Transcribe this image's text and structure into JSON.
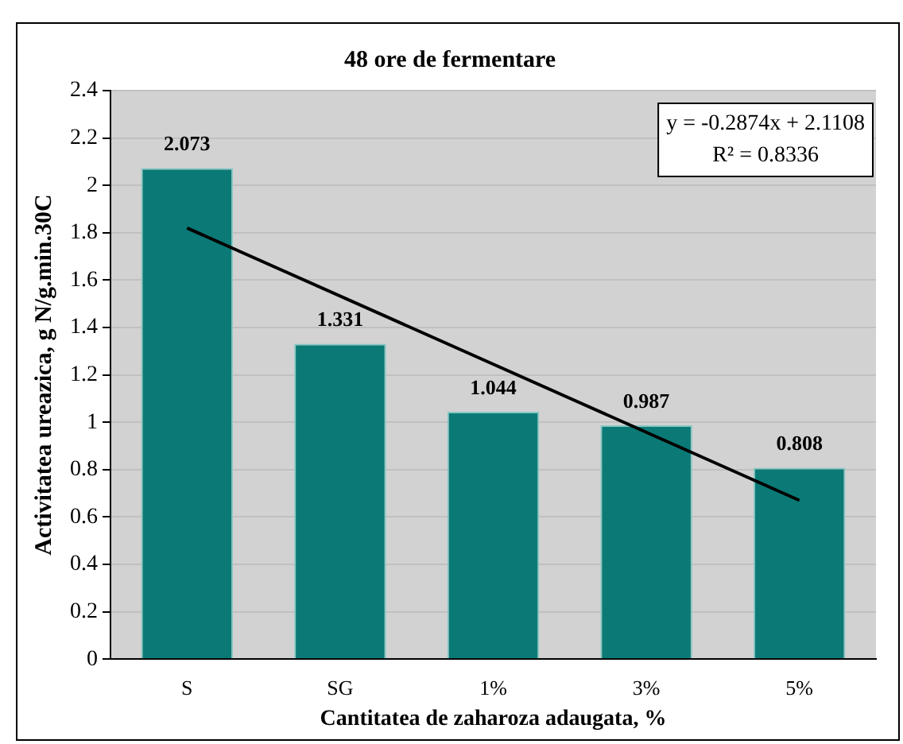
{
  "chart_data": {
    "type": "bar",
    "title": "48 ore de fermentare",
    "xlabel": "Cantitatea de zaharoza adaugata, %",
    "ylabel": "Activitatea ureazica, g N/g.min.30C",
    "categories": [
      "S",
      "SG",
      "1%",
      "3%",
      "5%"
    ],
    "series": [
      {
        "color": "#0b7a76",
        "values": [
          2.073,
          1.331,
          1.044,
          0.987,
          0.808
        ],
        "value_labels": [
          "2.073",
          "1.331",
          "1.044",
          "0.987",
          "0.808"
        ]
      },
      {
        "type": "line",
        "color": "#000000",
        "x": [
          "S",
          "5%"
        ],
        "values": [
          1.82,
          0.67
        ]
      }
    ],
    "ylim": [
      0,
      2.4
    ],
    "yticks": [
      0,
      0.2,
      0.4,
      0.6,
      0.8,
      1,
      1.2,
      1.4,
      1.6,
      1.8,
      2,
      2.2,
      2.4
    ],
    "grid": "y",
    "legend": false,
    "marker": "none",
    "line_style": "solid",
    "annotations": [
      "y = -0.2874x + 2.1108",
      "R² = 0.8336"
    ]
  }
}
